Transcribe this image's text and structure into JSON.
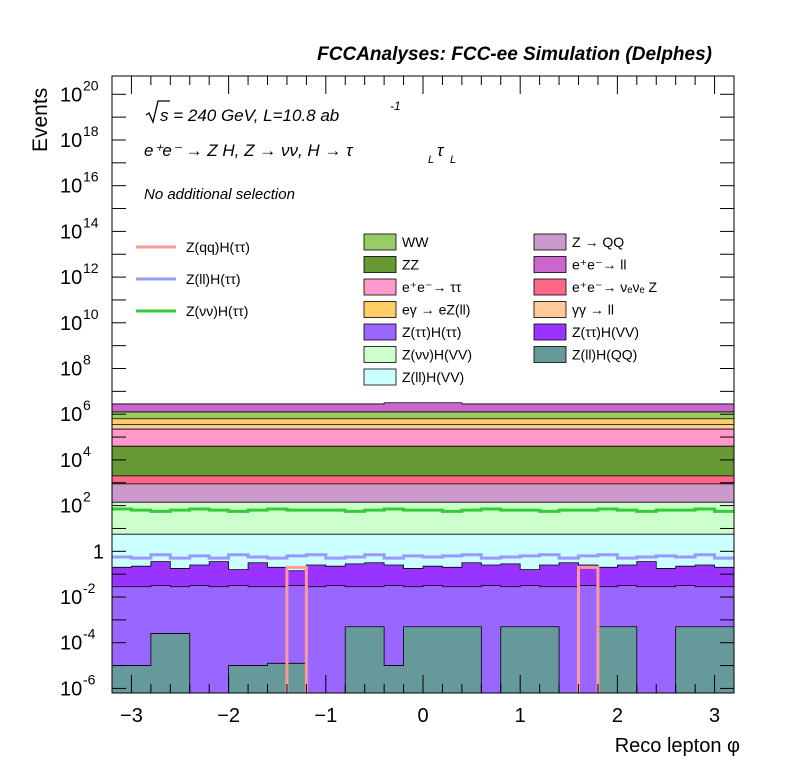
{
  "chart_data": {
    "type": "area",
    "title": "FCCAnalyses: FCC-ee Simulation (Delphes)",
    "xlabel": "Reco lepton φ",
    "ylabel": "Events",
    "yscale": "log",
    "xlim": [
      -3.2,
      3.2
    ],
    "ylim_log10": [
      -6.2,
      20.8
    ],
    "x_ticks": [
      {
        "v": -3,
        "label": "−3"
      },
      {
        "v": -2,
        "label": "−2"
      },
      {
        "v": -1,
        "label": "−1"
      },
      {
        "v": 0,
        "label": "0"
      },
      {
        "v": 1,
        "label": "1"
      },
      {
        "v": 2,
        "label": "2"
      },
      {
        "v": 3,
        "label": "3"
      }
    ],
    "y_ticks": [
      {
        "e": 20,
        "base": "10",
        "exp": "20"
      },
      {
        "e": 18,
        "base": "10",
        "exp": "18"
      },
      {
        "e": 16,
        "base": "10",
        "exp": "16"
      },
      {
        "e": 14,
        "base": "10",
        "exp": "14"
      },
      {
        "e": 12,
        "base": "10",
        "exp": "12"
      },
      {
        "e": 10,
        "base": "10",
        "exp": "10"
      },
      {
        "e": 8,
        "base": "10",
        "exp": "8"
      },
      {
        "e": 6,
        "base": "10",
        "exp": "6"
      },
      {
        "e": 4,
        "base": "10",
        "exp": "4"
      },
      {
        "e": 2,
        "base": "10",
        "exp": "2"
      },
      {
        "e": 0,
        "base": "1",
        "exp": ""
      },
      {
        "e": -2,
        "base": "10",
        "exp": "-2"
      },
      {
        "e": -4,
        "base": "10",
        "exp": "-4"
      },
      {
        "e": -6,
        "base": "10",
        "exp": "-6"
      }
    ],
    "annotations": {
      "energy_text": "s = 240 GeV, L=10.8 ab",
      "energy_sup": "-1",
      "process_text": "e⁺e⁻ → Z H, Z → νν, H → τ",
      "process_sub": "L",
      "selection_text": "No additional selection"
    },
    "legend_placement": "upper-middle",
    "line_series": [
      {
        "name": "Z(qq)H(ττ)",
        "color": "#ff9999",
        "bins": [
          {
            "x0": -1.4,
            "x1": -1.2,
            "log10": -0.7
          },
          {
            "x0": 1.6,
            "x1": 1.8,
            "log10": -0.7
          }
        ]
      },
      {
        "name": "Z(ll)H(ττ)",
        "color": "#9999ff",
        "log10": [
          -0.25,
          -0.3,
          -0.15,
          -0.3,
          -0.2,
          -0.3,
          -0.15,
          -0.25,
          -0.3,
          -0.2,
          -0.15,
          -0.3,
          -0.25,
          -0.15,
          -0.3,
          -0.2,
          -0.25,
          -0.2,
          -0.15,
          -0.3,
          -0.25,
          -0.2,
          -0.15,
          -0.3,
          -0.2,
          -0.15,
          -0.3,
          -0.25,
          -0.2,
          -0.25,
          -0.15,
          -0.3
        ]
      },
      {
        "name": "Z(νν)H(ττ)",
        "color": "#33cc33",
        "log10": [
          1.85,
          1.8,
          1.75,
          1.8,
          1.85,
          1.8,
          1.75,
          1.8,
          1.85,
          1.8,
          1.8,
          1.8,
          1.75,
          1.8,
          1.85,
          1.8,
          1.8,
          1.75,
          1.8,
          1.85,
          1.8,
          1.8,
          1.75,
          1.8,
          1.8,
          1.85,
          1.8,
          1.75,
          1.8,
          1.8,
          1.85,
          1.75
        ]
      }
    ],
    "stack_legend": [
      {
        "name": "WW",
        "color": "#99cc66"
      },
      {
        "name": "Z → QQ",
        "color": "#cc99cc"
      },
      {
        "name": "ZZ",
        "color": "#669933"
      },
      {
        "name": "e⁺e⁻→ ll",
        "color": "#cc66cc"
      },
      {
        "name": "e⁺e⁻→ ττ",
        "color": "#ff99cc"
      },
      {
        "name": "e⁺e⁻→ νₑνₑ Z",
        "color": "#ff6688"
      },
      {
        "name": "eγ → eZ(ll)",
        "color": "#ffcc66"
      },
      {
        "name": "γγ → ll",
        "color": "#ffcc99"
      },
      {
        "name": "Z(ττ)H(ττ)",
        "color": "#9966ff"
      },
      {
        "name": "Z(ττ)H(VV)",
        "color": "#9933ff"
      },
      {
        "name": "Z(νν)H(VV)",
        "color": "#ccffcc"
      },
      {
        "name": "Z(ll)H(QQ)",
        "color": "#669999"
      },
      {
        "name": "Z(ll)H(VV)",
        "color": "#ccffff"
      }
    ],
    "stack_layers": [
      {
        "name": "Z(ll)H(QQ)",
        "color": "#669999",
        "log10": [
          -5,
          -5,
          -3.6,
          -3.6,
          -6.2,
          -6.2,
          -5,
          -5,
          -4.9,
          -4.9,
          -6.2,
          -6.2,
          -3.3,
          -3.3,
          -5,
          -3.3,
          -3.3,
          -3.3,
          -3.3,
          -6.2,
          -3.3,
          -3.3,
          -3.3,
          -6.2,
          -6.2,
          -3.3,
          -3.3,
          -6.2,
          -6.2,
          -3.3,
          -3.3,
          -3.3
        ]
      },
      {
        "name": "Z(ττ)H(ττ)",
        "color": "#9966ff",
        "log10": [
          -1.55,
          -1.55,
          -1.5,
          -1.55,
          -1.5,
          -1.55,
          -1.5,
          -1.55,
          -1.55,
          -1.5,
          -1.55,
          -1.5,
          -1.55,
          -1.55,
          -1.5,
          -1.55,
          -1.5,
          -1.55,
          -1.55,
          -1.5,
          -1.55,
          -1.5,
          -1.55,
          -1.55,
          -1.5,
          -1.55,
          -1.5,
          -1.55,
          -1.55,
          -1.5,
          -1.55,
          -1.55
        ]
      },
      {
        "name": "Z(ττ)H(VV)",
        "color": "#9933ff",
        "log10": [
          -0.7,
          -0.65,
          -0.45,
          -0.75,
          -0.6,
          -0.45,
          -0.8,
          -0.5,
          -0.7,
          -0.85,
          -0.6,
          -0.65,
          -0.55,
          -0.5,
          -0.6,
          -0.75,
          -0.65,
          -0.7,
          -0.5,
          -0.6,
          -0.55,
          -0.8,
          -0.6,
          -0.5,
          -0.6,
          -0.7,
          -0.6,
          -0.45,
          -0.75,
          -0.65,
          -0.6,
          -0.7
        ]
      },
      {
        "name": "Z(ll)H(VV)",
        "color": "#ccffff",
        "log10": [
          0.75,
          0.75,
          0.75,
          0.75,
          0.75,
          0.75,
          0.75,
          0.75,
          0.75,
          0.75,
          0.75,
          0.75,
          0.75,
          0.75,
          0.75,
          0.75,
          0.75,
          0.75,
          0.75,
          0.75,
          0.75,
          0.75,
          0.75,
          0.75,
          0.75,
          0.75,
          0.75,
          0.75,
          0.75,
          0.75,
          0.75,
          0.75
        ]
      },
      {
        "name": "Z(νν)H(VV)",
        "color": "#ccffcc",
        "log10": [
          2.15,
          2.15,
          2.15,
          2.15,
          2.15,
          2.15,
          2.15,
          2.15,
          2.15,
          2.15,
          2.15,
          2.15,
          2.15,
          2.15,
          2.15,
          2.15,
          2.15,
          2.15,
          2.15,
          2.15,
          2.15,
          2.15,
          2.15,
          2.15,
          2.15,
          2.15,
          2.15,
          2.15,
          2.15,
          2.15,
          2.15,
          2.15
        ]
      },
      {
        "name": "Z → QQ",
        "color": "#cc99cc",
        "log10": [
          2.95,
          2.95,
          2.95,
          2.95,
          2.95,
          2.95,
          2.95,
          2.95,
          2.95,
          2.95,
          2.95,
          2.95,
          2.95,
          2.95,
          2.95,
          2.95,
          2.95,
          2.95,
          2.95,
          2.95,
          2.95,
          2.95,
          2.95,
          2.95,
          2.95,
          2.95,
          2.95,
          2.95,
          2.95,
          2.95,
          2.95,
          2.95
        ]
      },
      {
        "name": "e⁺e⁻→ νₑνₑ Z",
        "color": "#ff6688",
        "log10": [
          3.3,
          3.3,
          3.3,
          3.3,
          3.3,
          3.3,
          3.3,
          3.3,
          3.3,
          3.3,
          3.3,
          3.3,
          3.3,
          3.3,
          3.3,
          3.3,
          3.3,
          3.3,
          3.3,
          3.3,
          3.3,
          3.3,
          3.3,
          3.3,
          3.3,
          3.3,
          3.3,
          3.3,
          3.3,
          3.3,
          3.3,
          3.3
        ]
      },
      {
        "name": "ZZ",
        "color": "#669933",
        "log10": [
          4.6,
          4.6,
          4.6,
          4.6,
          4.6,
          4.6,
          4.6,
          4.6,
          4.6,
          4.6,
          4.6,
          4.6,
          4.6,
          4.6,
          4.6,
          4.6,
          4.6,
          4.6,
          4.6,
          4.6,
          4.6,
          4.6,
          4.6,
          4.6,
          4.6,
          4.6,
          4.6,
          4.6,
          4.6,
          4.6,
          4.6,
          4.6
        ]
      },
      {
        "name": "e⁺e⁻→ ττ",
        "color": "#ff99cc",
        "log10": [
          5.35,
          5.35,
          5.35,
          5.35,
          5.35,
          5.35,
          5.35,
          5.35,
          5.35,
          5.35,
          5.35,
          5.35,
          5.35,
          5.35,
          5.35,
          5.35,
          5.35,
          5.35,
          5.35,
          5.35,
          5.35,
          5.35,
          5.35,
          5.35,
          5.35,
          5.35,
          5.35,
          5.35,
          5.35,
          5.35,
          5.35,
          5.35
        ]
      },
      {
        "name": "γγ → ll",
        "color": "#ffcc99",
        "log10": [
          5.55,
          5.55,
          5.55,
          5.55,
          5.55,
          5.55,
          5.55,
          5.55,
          5.55,
          5.55,
          5.55,
          5.55,
          5.55,
          5.55,
          5.55,
          5.55,
          5.55,
          5.55,
          5.55,
          5.55,
          5.55,
          5.55,
          5.55,
          5.55,
          5.55,
          5.55,
          5.55,
          5.55,
          5.55,
          5.55,
          5.55,
          5.55
        ]
      },
      {
        "name": "eγ → eZ(ll)",
        "color": "#ffcc66",
        "log10": [
          5.8,
          5.8,
          5.8,
          5.8,
          5.8,
          5.8,
          5.8,
          5.8,
          5.8,
          5.8,
          5.8,
          5.8,
          5.8,
          5.8,
          5.8,
          5.8,
          5.8,
          5.8,
          5.8,
          5.8,
          5.8,
          5.8,
          5.8,
          5.8,
          5.8,
          5.8,
          5.8,
          5.8,
          5.8,
          5.8,
          5.8,
          5.8
        ]
      },
      {
        "name": "WW",
        "color": "#99cc66",
        "log10": [
          6.1,
          6.1,
          6.1,
          6.1,
          6.1,
          6.1,
          6.1,
          6.1,
          6.1,
          6.1,
          6.1,
          6.1,
          6.1,
          6.1,
          6.1,
          6.1,
          6.1,
          6.1,
          6.1,
          6.1,
          6.1,
          6.1,
          6.1,
          6.1,
          6.1,
          6.1,
          6.1,
          6.1,
          6.1,
          6.1,
          6.1,
          6.1
        ]
      },
      {
        "name": "e⁺e⁻→ ll",
        "color": "#cc66cc",
        "log10": [
          6.45,
          6.45,
          6.45,
          6.45,
          6.45,
          6.45,
          6.45,
          6.45,
          6.45,
          6.45,
          6.45,
          6.45,
          6.45,
          6.45,
          6.5,
          6.5,
          6.5,
          6.5,
          6.45,
          6.45,
          6.45,
          6.45,
          6.45,
          6.45,
          6.45,
          6.45,
          6.45,
          6.45,
          6.45,
          6.45,
          6.45,
          6.45
        ]
      }
    ]
  }
}
